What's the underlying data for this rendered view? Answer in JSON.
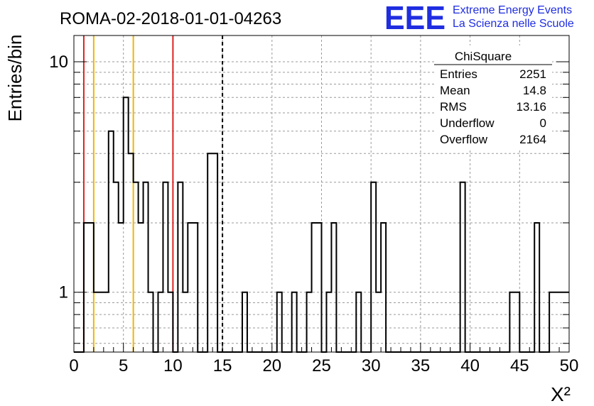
{
  "header": {
    "title": "ROMA-02-2018-01-01-04263",
    "logo_text": "EEE",
    "logo_line1": "Extreme Energy Events",
    "logo_line2": "La Scienza nelle Scuole"
  },
  "stats_box": {
    "title": "ChiSquare",
    "rows": [
      {
        "label": "Entries",
        "value": "2251"
      },
      {
        "label": "Mean",
        "value": "14.8"
      },
      {
        "label": "RMS",
        "value": "13.16"
      },
      {
        "label": "Underflow",
        "value": "0"
      },
      {
        "label": "Overflow",
        "value": "2164"
      }
    ]
  },
  "colors": {
    "red_line": "#dd2222",
    "orange_line": "#f2b600",
    "histogram": "#000000",
    "grid": "#9a9a9a",
    "logo": "#1f2de0"
  },
  "chart_data": {
    "type": "histogram",
    "title": "ROMA-02-2018-01-01-04263",
    "xlabel": "X²",
    "ylabel": "Entries/bin",
    "xlim": [
      0,
      50
    ],
    "ylim": [
      0.55,
      13
    ],
    "y_scale": "log",
    "grid": true,
    "bin_width": 0.5,
    "x_ticks": [
      0,
      5,
      10,
      15,
      20,
      25,
      30,
      35,
      40,
      45,
      50
    ],
    "y_ticks": [
      1,
      10
    ],
    "bins": [
      {
        "x": 1.0,
        "y": 2
      },
      {
        "x": 1.5,
        "y": 2
      },
      {
        "x": 2.0,
        "y": 1
      },
      {
        "x": 2.5,
        "y": 1
      },
      {
        "x": 3.0,
        "y": 1
      },
      {
        "x": 3.5,
        "y": 5
      },
      {
        "x": 4.0,
        "y": 3
      },
      {
        "x": 4.5,
        "y": 2
      },
      {
        "x": 5.0,
        "y": 7
      },
      {
        "x": 5.5,
        "y": 4
      },
      {
        "x": 6.0,
        "y": 3
      },
      {
        "x": 6.5,
        "y": 2
      },
      {
        "x": 7.0,
        "y": 3
      },
      {
        "x": 7.5,
        "y": 1
      },
      {
        "x": 8.5,
        "y": 1
      },
      {
        "x": 9.0,
        "y": 3
      },
      {
        "x": 9.5,
        "y": 1
      },
      {
        "x": 10.5,
        "y": 3
      },
      {
        "x": 11.0,
        "y": 1
      },
      {
        "x": 11.5,
        "y": 2
      },
      {
        "x": 12.0,
        "y": 2
      },
      {
        "x": 13.5,
        "y": 4
      },
      {
        "x": 14.0,
        "y": 4
      },
      {
        "x": 17.0,
        "y": 1
      },
      {
        "x": 20.5,
        "y": 1
      },
      {
        "x": 22.0,
        "y": 1
      },
      {
        "x": 23.5,
        "y": 1
      },
      {
        "x": 24.0,
        "y": 2
      },
      {
        "x": 24.5,
        "y": 2
      },
      {
        "x": 25.5,
        "y": 1
      },
      {
        "x": 26.0,
        "y": 2
      },
      {
        "x": 28.5,
        "y": 1
      },
      {
        "x": 30.0,
        "y": 3
      },
      {
        "x": 30.5,
        "y": 1
      },
      {
        "x": 31.0,
        "y": 2
      },
      {
        "x": 39.0,
        "y": 3
      },
      {
        "x": 44.0,
        "y": 1
      },
      {
        "x": 44.5,
        "y": 1
      },
      {
        "x": 46.5,
        "y": 2
      },
      {
        "x": 48.0,
        "y": 1
      },
      {
        "x": 48.5,
        "y": 1
      },
      {
        "x": 49.0,
        "y": 1
      },
      {
        "x": 49.5,
        "y": 1
      }
    ],
    "vertical_lines": [
      {
        "x": 1.0,
        "color": "red",
        "style": "solid"
      },
      {
        "x": 2.0,
        "color": "orange",
        "style": "solid"
      },
      {
        "x": 6.0,
        "color": "orange",
        "style": "solid"
      },
      {
        "x": 10.0,
        "color": "red",
        "style": "solid"
      },
      {
        "x": 15.0,
        "color": "black",
        "style": "dashed"
      }
    ]
  }
}
